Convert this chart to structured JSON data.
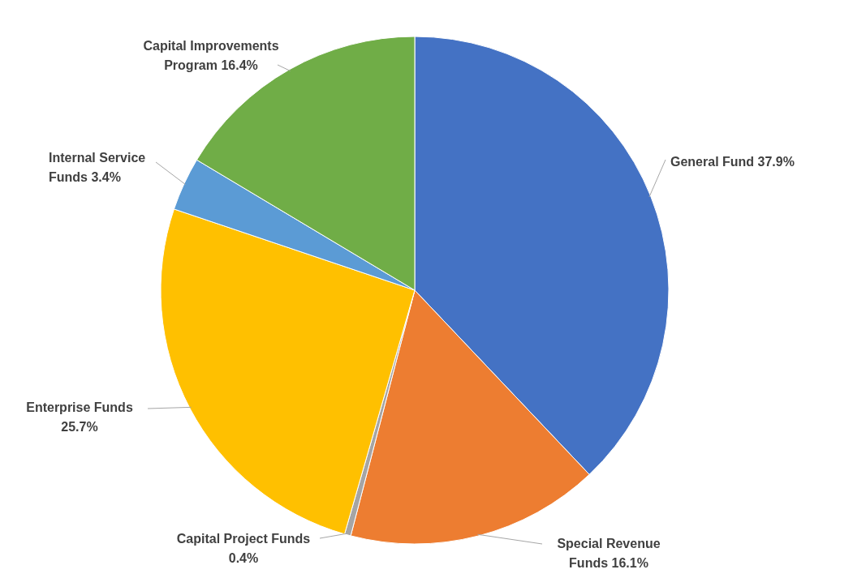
{
  "chart_data": {
    "type": "pie",
    "categories": [
      "General Fund",
      "Special Revenue Funds",
      "Capital Project Funds",
      "Enterprise Funds",
      "Internal Service Funds",
      "Capital Improvements Program"
    ],
    "values": [
      37.9,
      16.1,
      0.4,
      25.7,
      3.4,
      16.4
    ],
    "value_labels": [
      "37.9%",
      "16.1%",
      "0.4%",
      "25.7%",
      "3.4%",
      "16.4%"
    ],
    "colors": [
      "#4472c4",
      "#ed7d31",
      "#a5a5a5",
      "#ffc000",
      "#5b9bd5",
      "#70ad47"
    ]
  }
}
